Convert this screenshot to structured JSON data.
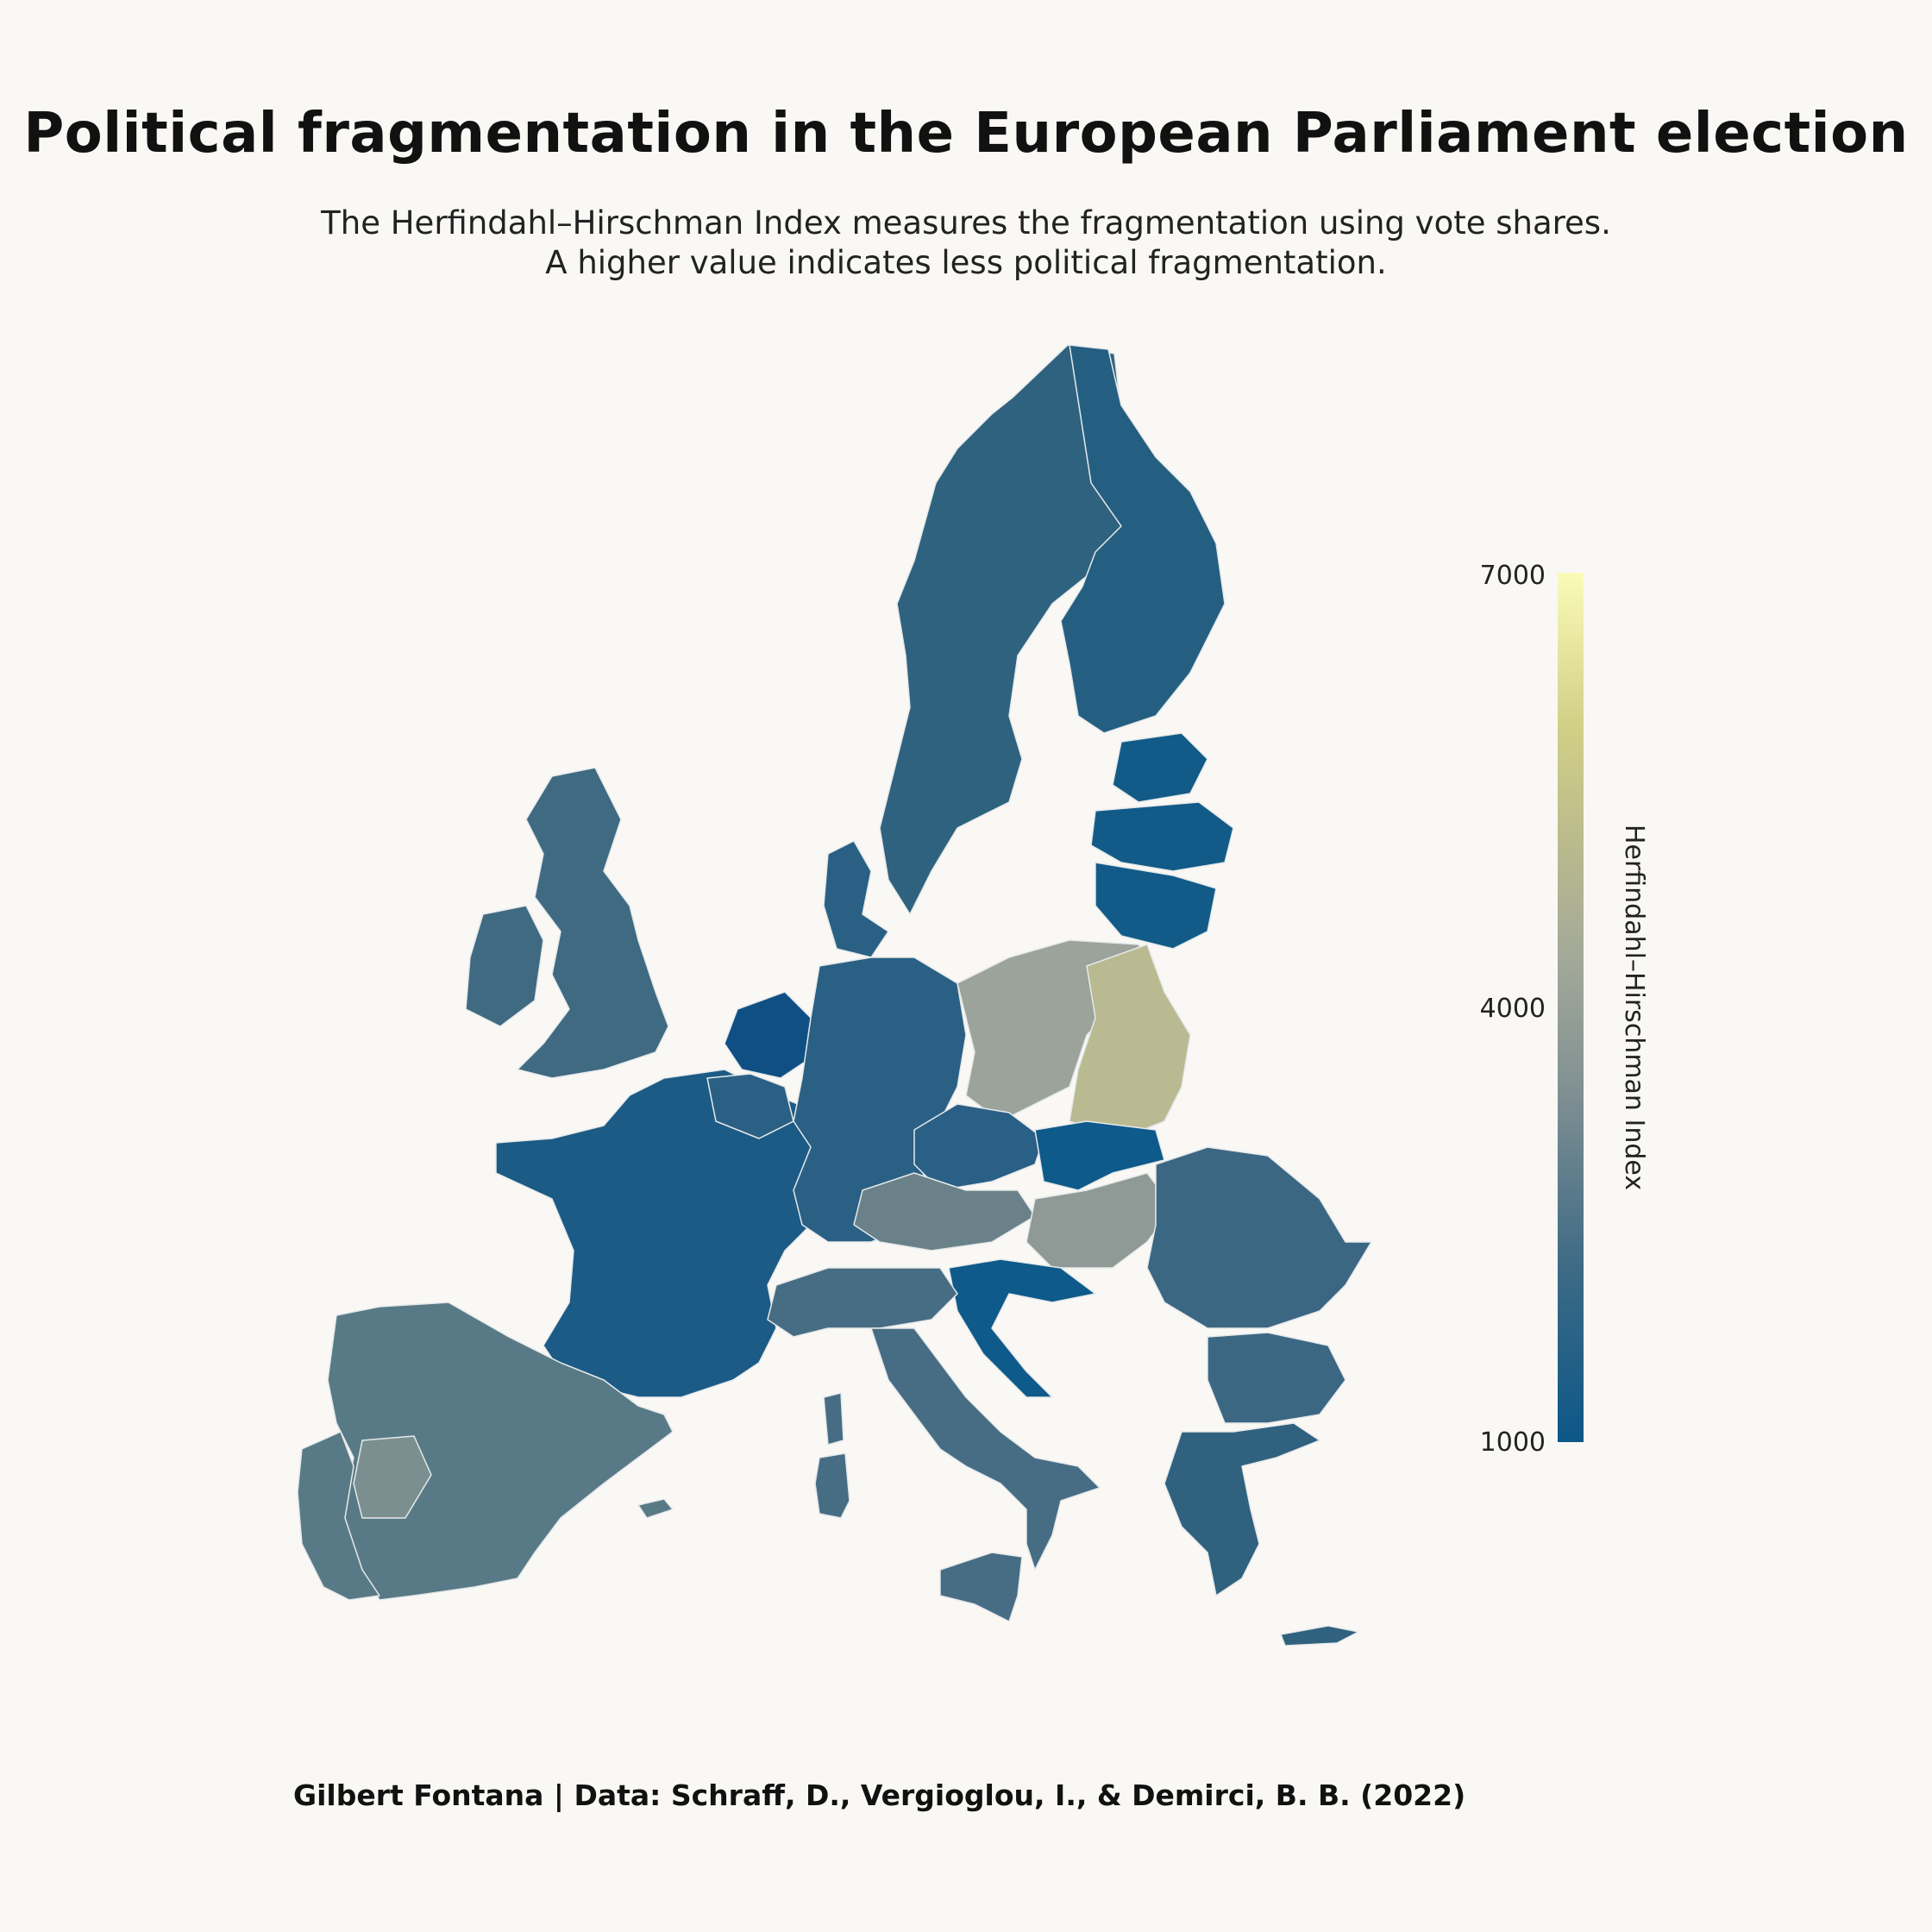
{
  "title": "Political fragmentation in the European Parliament election",
  "subtitle": {
    "line1": "The Herfindahl–Hirschman Index measures the fragmentation using vote shares.",
    "line2": "A higher value indicates less political fragmentation."
  },
  "legend": {
    "title": "Herfindahl–Hirschman Index",
    "ticks": [
      "7000",
      "4000",
      "1000"
    ],
    "range": [
      1000,
      7000
    ],
    "colors": {
      "low": "#0d5788",
      "mid": "#a2a899",
      "high": "#fbfbb9"
    }
  },
  "caption": "Gilbert Fontana | Data: Schraff, D., Vergioglou, I., & Demirci, B. B. (2022)",
  "regions": {
    "colors": {
      "scandinavia_north": "#2f627f",
      "finland": "#245f82",
      "baltics": "#125b88",
      "uk": "#3f6a82",
      "france": "#1b5b86",
      "iberia": "#587a86",
      "central_spain": "#7c8f90",
      "benelux": "#0f4f84",
      "germany": "#2a6084",
      "italy": "#476d84",
      "alpine_east": "#6a8189",
      "poland": "#9ba39a",
      "poland_east": "#b9ba91",
      "czechia": "#2a5f86",
      "slovakia": "#0e5a8a",
      "hungary": "#8f9a96",
      "romania": "#3c6783",
      "greece": "#30617f"
    }
  }
}
